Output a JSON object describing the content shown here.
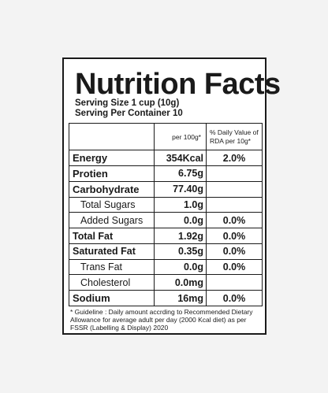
{
  "label": {
    "title": "Nutrition Facts",
    "serving_size": "Serving Size 1 cup (10g)",
    "serving_per_container": "Serving Per Container 10",
    "col_per_100g": "per 100g*",
    "col_rda": "% Daily Value of RDA per 10g*",
    "rows": [
      {
        "name": "Energy",
        "value": "354Kcal",
        "rda": "2.0%"
      },
      {
        "name": "Protien",
        "value": "6.75g",
        "rda": ""
      },
      {
        "name": "Carbohydrate",
        "value": "77.40g",
        "rda": ""
      },
      {
        "name": "Total Sugars",
        "value": "1.0g",
        "rda": ""
      },
      {
        "name": "Added Sugars",
        "value": "0.0g",
        "rda": "0.0%"
      },
      {
        "name": "Total Fat",
        "value": "1.92g",
        "rda": "0.0%"
      },
      {
        "name": "Saturated Fat",
        "value": "0.35g",
        "rda": "0.0%"
      },
      {
        "name": "Trans Fat",
        "value": "0.0g",
        "rda": "0.0%"
      },
      {
        "name": "Cholesterol",
        "value": "0.0mg",
        "rda": ""
      },
      {
        "name": "Sodium",
        "value": "16mg",
        "rda": "0.0%"
      }
    ],
    "footnote": "* Guideline : Daily amount accrding to Recommended Dietary Allowance for average adult per day (2000 Kcal diet) as per FSSR (Labelling & Display) 2020"
  }
}
